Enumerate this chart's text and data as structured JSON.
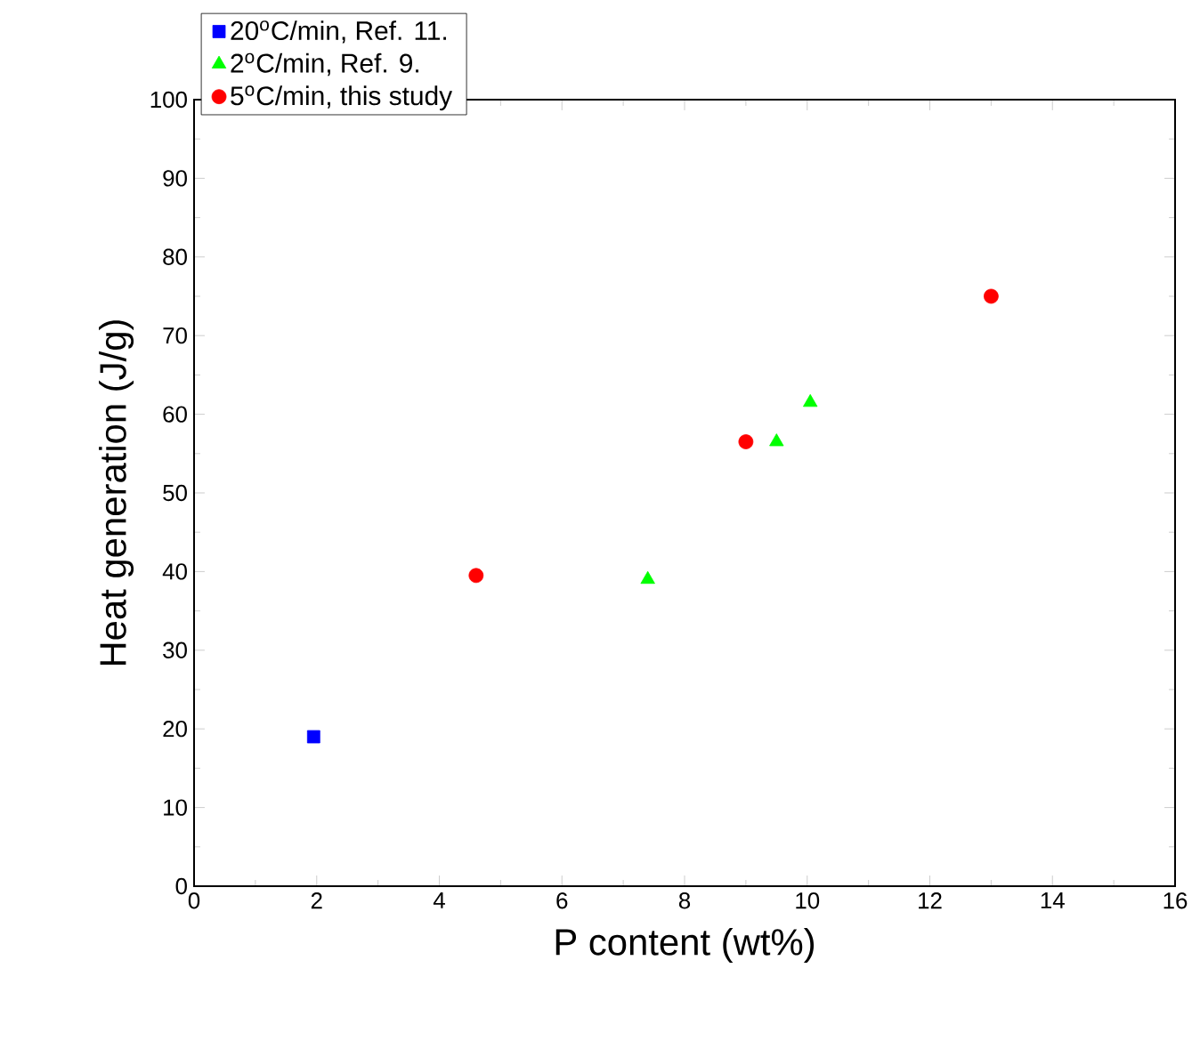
{
  "chart_data": {
    "type": "scatter",
    "xlabel": "P content (wt%)",
    "ylabel": "Heat generation (J/g)",
    "xlim": [
      0,
      16
    ],
    "ylim": [
      0,
      100
    ],
    "xticks": [
      0,
      2,
      4,
      6,
      8,
      10,
      12,
      14,
      16
    ],
    "yticks": [
      0,
      10,
      20,
      30,
      40,
      50,
      60,
      70,
      80,
      90,
      100
    ],
    "grid": false,
    "legend": "top left",
    "series": [
      {
        "name": "20$^{o}$C/min, Ref. 11.",
        "color": "#0000ff",
        "marker": "square",
        "x": [
          1.95
        ],
        "values": [
          19
        ]
      },
      {
        "name": "2$^{o}$C/min, Ref. 9.",
        "color": "#00ff00",
        "marker": "triangle",
        "x": [
          7.4,
          9.5,
          10.05
        ],
        "values": [
          39,
          56.5,
          61.5
        ]
      },
      {
        "name": "5$^{o}$C/min, this study",
        "color": "#ff0000",
        "marker": "circle",
        "x": [
          4.6,
          9,
          13
        ],
        "values": [
          39.5,
          56.5,
          75
        ]
      }
    ]
  }
}
